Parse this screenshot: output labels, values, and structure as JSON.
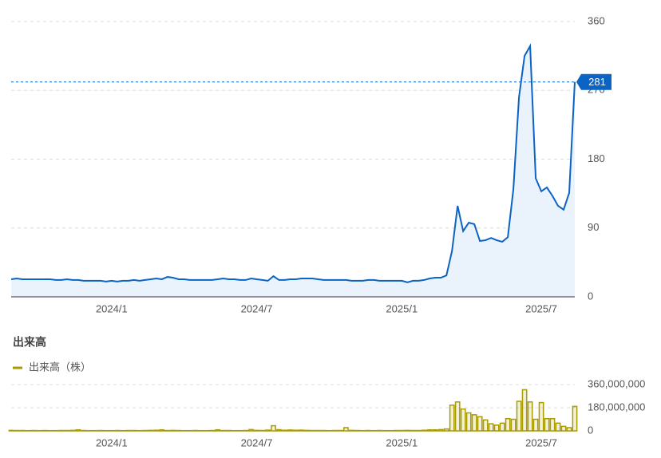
{
  "chart_data": [
    {
      "type": "area",
      "categories": [
        null,
        null,
        null,
        null,
        null,
        null,
        null,
        null,
        null,
        null,
        null,
        null,
        null,
        null,
        null,
        null,
        null,
        null,
        "2024/1",
        null,
        null,
        null,
        null,
        null,
        null,
        null,
        null,
        null,
        null,
        null,
        null,
        null,
        null,
        null,
        null,
        null,
        null,
        null,
        null,
        null,
        null,
        null,
        null,
        null,
        "2024/7",
        null,
        null,
        null,
        null,
        null,
        null,
        null,
        null,
        null,
        null,
        null,
        null,
        null,
        null,
        null,
        null,
        null,
        null,
        null,
        null,
        null,
        null,
        null,
        null,
        null,
        "2025/1",
        null,
        null,
        null,
        null,
        null,
        null,
        null,
        null,
        null,
        null,
        null,
        null,
        null,
        null,
        null,
        null,
        null,
        null,
        null,
        null,
        null,
        null,
        null,
        null,
        "2025/7",
        null,
        null,
        null,
        null,
        null,
        null
      ],
      "series": [
        {
          "color": "#0b63c4",
          "values": [
            23,
            24,
            23,
            23,
            23,
            23,
            23,
            23,
            22,
            22,
            23,
            22,
            22,
            21,
            21,
            21,
            21,
            20,
            21,
            20,
            21,
            21,
            22,
            21,
            22,
            23,
            24,
            23,
            26,
            25,
            23,
            23,
            22,
            22,
            22,
            22,
            22,
            23,
            24,
            23,
            23,
            22,
            22,
            24,
            23,
            22,
            21,
            27,
            22,
            22,
            23,
            23,
            24,
            24,
            24,
            23,
            22,
            22,
            22,
            22,
            22,
            21,
            21,
            21,
            22,
            22,
            21,
            21,
            21,
            21,
            21,
            19,
            21,
            21,
            22,
            24,
            25,
            25,
            28,
            60,
            119,
            86,
            97,
            95,
            73,
            74,
            77,
            74,
            72,
            78,
            141,
            261,
            315,
            328,
            155,
            138,
            143,
            132,
            119,
            114,
            136,
            281
          ]
        }
      ],
      "ylim": [
        0,
        360
      ],
      "yticks": [
        0,
        90,
        180,
        270,
        360
      ],
      "grid": true
    },
    {
      "type": "bar",
      "title": "出来高",
      "categories": [
        null,
        null,
        null,
        null,
        null,
        null,
        null,
        null,
        null,
        null,
        null,
        null,
        null,
        null,
        null,
        null,
        null,
        null,
        "2024/1",
        null,
        null,
        null,
        null,
        null,
        null,
        null,
        null,
        null,
        null,
        null,
        null,
        null,
        null,
        null,
        null,
        null,
        null,
        null,
        null,
        null,
        null,
        null,
        null,
        null,
        "2024/7",
        null,
        null,
        null,
        null,
        null,
        null,
        null,
        null,
        null,
        null,
        null,
        null,
        null,
        null,
        null,
        null,
        null,
        null,
        null,
        null,
        null,
        null,
        null,
        null,
        null,
        "2025/1",
        null,
        null,
        null,
        null,
        null,
        null,
        null,
        null,
        null,
        null,
        null,
        null,
        null,
        null,
        null,
        null,
        null,
        null,
        null,
        null,
        null,
        null,
        null,
        null,
        "2025/7",
        null,
        null,
        null,
        null,
        null,
        null
      ],
      "series": [
        {
          "name": "出来高（株）",
          "color": "#a89c00",
          "values": [
            4000000,
            3000000,
            3000000,
            2000000,
            3000000,
            2000000,
            3000000,
            2000000,
            2000000,
            3000000,
            3000000,
            4000000,
            8000000,
            3000000,
            2000000,
            2000000,
            3000000,
            2000000,
            2000000,
            3000000,
            2000000,
            3000000,
            3000000,
            2000000,
            3000000,
            4000000,
            5000000,
            8000000,
            3000000,
            4000000,
            3000000,
            2000000,
            2000000,
            3000000,
            2000000,
            2000000,
            3000000,
            8000000,
            3000000,
            3000000,
            2000000,
            2000000,
            3000000,
            10000000,
            4000000,
            3000000,
            6000000,
            40000000,
            9000000,
            5000000,
            7000000,
            5000000,
            6000000,
            4000000,
            3000000,
            3000000,
            3000000,
            2000000,
            3000000,
            3000000,
            25000000,
            4000000,
            3000000,
            2000000,
            3000000,
            2000000,
            3000000,
            2000000,
            2000000,
            3000000,
            3000000,
            4000000,
            3000000,
            3000000,
            5000000,
            8000000,
            8000000,
            10000000,
            15000000,
            200000000,
            225000000,
            170000000,
            140000000,
            125000000,
            110000000,
            85000000,
            55000000,
            45000000,
            60000000,
            95000000,
            90000000,
            230000000,
            320000000,
            225000000,
            90000000,
            220000000,
            95000000,
            95000000,
            60000000,
            35000000,
            25000000,
            190000000
          ]
        }
      ],
      "ylim": [
        0,
        360000000
      ],
      "yticks": [
        {
          "value": 0,
          "label": "0"
        },
        {
          "value": 180000000,
          "label": "180,000,000"
        },
        {
          "value": 360000000,
          "label": "360,000,000"
        }
      ],
      "grid": true,
      "legend": "top-left"
    }
  ]
}
